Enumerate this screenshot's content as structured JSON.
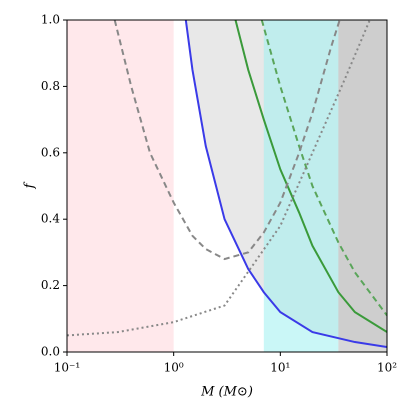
{
  "chart_data": {
    "type": "line",
    "x_label": "M (M⊙)",
    "y_label": "f",
    "xscale": "log",
    "xlim": [
      0.1,
      100
    ],
    "ylim": [
      0,
      1
    ],
    "xticks": [
      {
        "value": 0.1,
        "label": "10⁻¹"
      },
      {
        "value": 1,
        "label": "10⁰"
      },
      {
        "value": 10,
        "label": "10¹"
      },
      {
        "value": 100,
        "label": "10²"
      }
    ],
    "yticks": [
      {
        "value": 0,
        "label": "0.0"
      },
      0.2,
      0.4,
      0.6,
      0.8,
      {
        "value": 1,
        "label": "1.0"
      }
    ],
    "regions": [
      {
        "x": [
          0.1,
          1
        ],
        "color": "#ffd6da"
      },
      {
        "x": [
          7,
          35
        ],
        "color": "#9ef0f0"
      },
      {
        "x": [
          35,
          100
        ],
        "color": "#b8b8b8"
      }
    ],
    "series": [
      {
        "x": [
          1.3,
          1.5,
          2,
          3,
          5,
          7,
          10,
          20,
          50,
          100
        ],
        "values": [
          1.0,
          0.85,
          0.62,
          0.4,
          0.25,
          0.18,
          0.12,
          0.06,
          0.03,
          0.015
        ],
        "color": "#3a3ae8",
        "dash": "solid",
        "fill_above": "#e4e4e4"
      },
      {
        "x": [
          3.8,
          5,
          7,
          10,
          15,
          20,
          35,
          50,
          100
        ],
        "values": [
          1.0,
          0.85,
          0.7,
          0.55,
          0.42,
          0.32,
          0.18,
          0.12,
          0.06
        ],
        "color": "#3a9a3a",
        "dash": "solid"
      },
      {
        "x": [
          6.7,
          10,
          15,
          20,
          35,
          50,
          100
        ],
        "values": [
          1.0,
          0.8,
          0.62,
          0.5,
          0.33,
          0.24,
          0.11
        ],
        "color": "#5aa55a",
        "dash": "dashed"
      },
      {
        "x": [
          0.28,
          0.4,
          0.6,
          1,
          1.5,
          2,
          3,
          5,
          7,
          10,
          15,
          20,
          30,
          36
        ],
        "values": [
          1.0,
          0.8,
          0.6,
          0.45,
          0.35,
          0.31,
          0.28,
          0.3,
          0.36,
          0.45,
          0.6,
          0.72,
          0.92,
          1.0
        ],
        "color": "#888888",
        "dash": "dashed"
      },
      {
        "x": [
          0.1,
          0.3,
          1,
          3,
          10,
          20,
          40,
          69
        ],
        "values": [
          0.05,
          0.06,
          0.09,
          0.14,
          0.38,
          0.6,
          0.82,
          1.0
        ],
        "color": "#888888",
        "dash": "dotted"
      }
    ]
  }
}
